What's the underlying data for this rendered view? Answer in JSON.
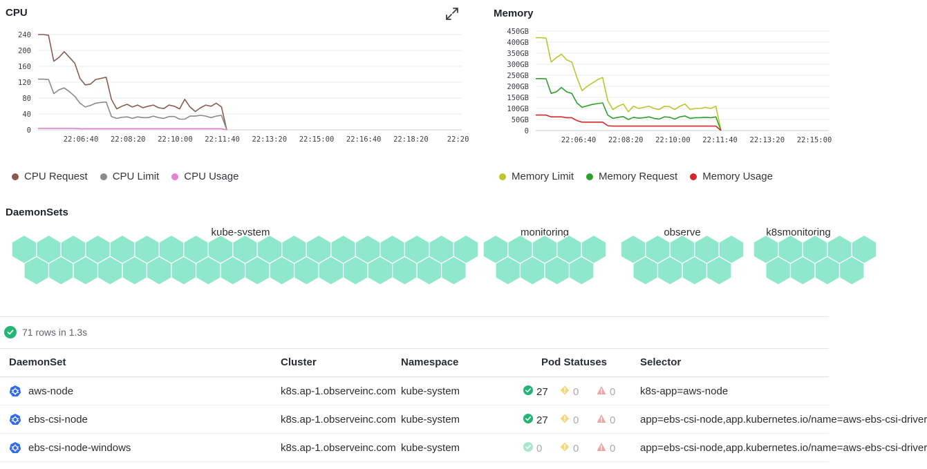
{
  "cpu": {
    "title": "CPU",
    "y_ticks": [
      "240",
      "200",
      "160",
      "120",
      "80",
      "40",
      "0"
    ],
    "x_ticks": [
      "22:06:40",
      "22:08:20",
      "22:10:00",
      "22:11:40",
      "22:13:20",
      "22:15:00",
      "22:16:40",
      "22:18:20",
      "22:20"
    ],
    "legend": [
      "CPU Request",
      "CPU Limit",
      "CPU Usage"
    ],
    "colors": [
      "#8b5a4e",
      "#8a8a8a",
      "#e87fd0"
    ]
  },
  "memory": {
    "title": "Memory",
    "y_ticks": [
      "450GB",
      "400GB",
      "350GB",
      "300GB",
      "250GB",
      "200GB",
      "150GB",
      "100GB",
      "50GB",
      "0"
    ],
    "x_ticks": [
      "22:06:40",
      "22:08:20",
      "22:10:00",
      "22:11:40",
      "22:13:20",
      "22:15:00"
    ],
    "legend": [
      "Memory Limit",
      "Memory Request",
      "Memory Usage"
    ],
    "colors": [
      "#bcc52b",
      "#2ca02c",
      "#d62728"
    ]
  },
  "chart_data": [
    {
      "type": "line",
      "title": "CPU",
      "ylim": [
        0,
        250
      ],
      "x": [
        "22:05:40",
        "22:05:55",
        "22:06:10",
        "22:06:15",
        "22:06:25",
        "22:06:35",
        "22:06:45",
        "22:06:55",
        "22:07:05",
        "22:07:15",
        "22:07:25",
        "22:07:35",
        "22:07:45",
        "22:07:55",
        "22:08:05",
        "22:08:15",
        "22:08:25",
        "22:08:35",
        "22:08:45",
        "22:08:55",
        "22:09:05",
        "22:09:15",
        "22:09:25",
        "22:09:35",
        "22:09:45",
        "22:09:55",
        "22:10:05",
        "22:10:15",
        "22:10:25",
        "22:10:35",
        "22:10:45",
        "22:10:55",
        "22:11:05",
        "22:11:15",
        "22:11:25",
        "22:11:35",
        "22:11:45"
      ],
      "series": [
        {
          "name": "CPU Request",
          "values": [
            250,
            250,
            248,
            180,
            190,
            205,
            190,
            175,
            135,
            118,
            120,
            132,
            135,
            138,
            80,
            55,
            62,
            67,
            60,
            65,
            58,
            62,
            65,
            58,
            56,
            65,
            62,
            55,
            80,
            60,
            48,
            58,
            65,
            62,
            70,
            60,
            0
          ]
        },
        {
          "name": "CPU Limit",
          "values": [
            133,
            133,
            132,
            95,
            105,
            110,
            100,
            88,
            70,
            60,
            64,
            70,
            72,
            73,
            35,
            30,
            33,
            34,
            30,
            34,
            32,
            32,
            36,
            32,
            30,
            35,
            35,
            28,
            28,
            36,
            36,
            38,
            36,
            32,
            36,
            38,
            0
          ]
        },
        {
          "name": "CPU Usage",
          "values": [
            4,
            4,
            4,
            4,
            4,
            4,
            4,
            4,
            3,
            3,
            3,
            3,
            3,
            3,
            3,
            3,
            3,
            3,
            3,
            3,
            3,
            3,
            3,
            3,
            3,
            3,
            3,
            3,
            3,
            3,
            3,
            3,
            3,
            3,
            3,
            3,
            0
          ]
        }
      ]
    },
    {
      "type": "line",
      "title": "Memory",
      "ylim": [
        0,
        450
      ],
      "series": [
        {
          "name": "Memory Limit",
          "values": [
            420,
            420,
            418,
            310,
            330,
            345,
            320,
            310,
            240,
            180,
            200,
            215,
            230,
            240,
            135,
            95,
            110,
            120,
            85,
            110,
            100,
            105,
            110,
            100,
            95,
            110,
            108,
            95,
            110,
            120,
            95,
            100,
            100,
            105,
            100,
            110,
            0
          ]
        },
        {
          "name": "Memory Request",
          "values": [
            235,
            235,
            234,
            168,
            175,
            195,
            175,
            168,
            125,
            105,
            112,
            118,
            122,
            125,
            70,
            55,
            60,
            63,
            50,
            60,
            56,
            58,
            62,
            55,
            52,
            62,
            60,
            52,
            62,
            66,
            55,
            58,
            58,
            60,
            58,
            62,
            0
          ]
        },
        {
          "name": "Memory Usage",
          "values": [
            70,
            70,
            70,
            62,
            62,
            62,
            58,
            58,
            45,
            38,
            38,
            38,
            38,
            38,
            22,
            20,
            20,
            20,
            20,
            20,
            20,
            20,
            20,
            20,
            20,
            20,
            20,
            20,
            20,
            20,
            20,
            20,
            20,
            20,
            20,
            20,
            0
          ]
        }
      ]
    }
  ],
  "daemonsets": {
    "title": "DaemonSets",
    "groups": [
      {
        "label": "kube-system",
        "count": 37
      },
      {
        "label": "monitoring",
        "count": 9
      },
      {
        "label": "observe",
        "count": 9
      },
      {
        "label": "k8smonitoring",
        "count": 9
      }
    ]
  },
  "result": {
    "text": "71 rows in 1.3s"
  },
  "table": {
    "headers": [
      "DaemonSet",
      "Cluster",
      "Namespace",
      "Pod Statuses",
      "Selector"
    ],
    "rows": [
      {
        "name": "aws-node",
        "cluster": "k8s.ap-1.observeinc.com",
        "namespace": "kube-system",
        "ok": "27",
        "warn": "0",
        "err": "0",
        "ok_active": true,
        "selector": "k8s-app=aws-node"
      },
      {
        "name": "ebs-csi-node",
        "cluster": "k8s.ap-1.observeinc.com",
        "namespace": "kube-system",
        "ok": "27",
        "warn": "0",
        "err": "0",
        "ok_active": true,
        "selector": "app=ebs-csi-node,app.kubernetes.io/name=aws-ebs-csi-driver"
      },
      {
        "name": "ebs-csi-node-windows",
        "cluster": "k8s.ap-1.observeinc.com",
        "namespace": "kube-system",
        "ok": "0",
        "warn": "0",
        "err": "0",
        "ok_active": false,
        "selector": "app=ebs-csi-node,app.kubernetes.io/name=aws-ebs-csi-driver"
      }
    ]
  }
}
